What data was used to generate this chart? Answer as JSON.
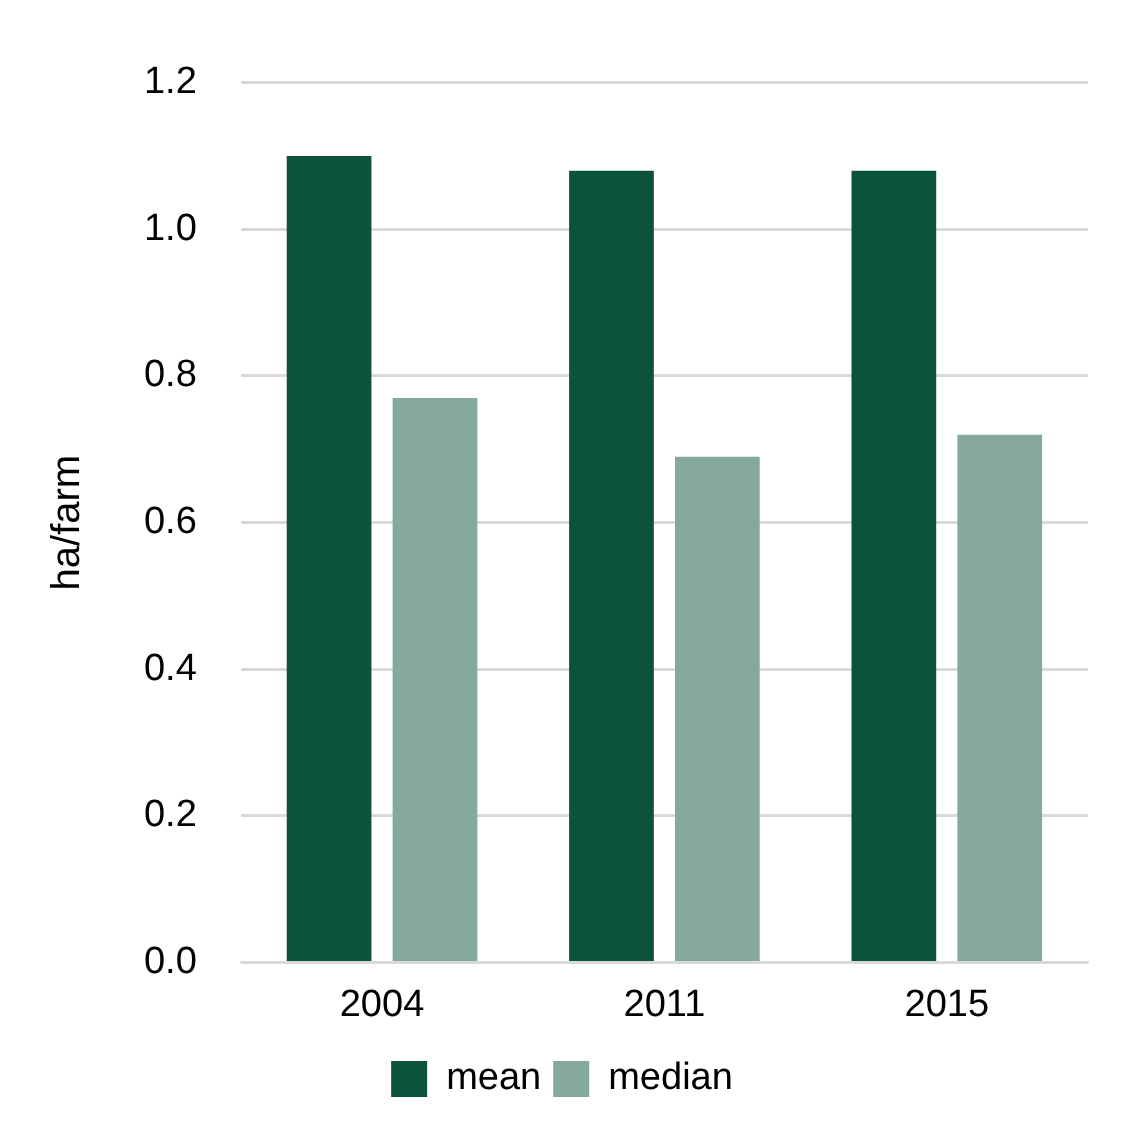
{
  "chart_data": {
    "type": "bar",
    "ylabel": "ha/farm",
    "categories": [
      "2004",
      "2011",
      "2015"
    ],
    "series": [
      {
        "name": "mean",
        "color": "#0b5339",
        "values": [
          1.1,
          1.08,
          1.08
        ]
      },
      {
        "name": "median",
        "color": "#85aa9c",
        "values": [
          0.77,
          0.69,
          0.72
        ]
      }
    ],
    "ylim": [
      0,
      1.2
    ],
    "yticks": [
      {
        "value": 0,
        "label": "0.0"
      },
      0.2,
      0.4,
      0.6,
      0.8,
      {
        "value": 1,
        "label": "1.0"
      },
      1.2
    ],
    "grid": "y",
    "legend": "bottom"
  }
}
